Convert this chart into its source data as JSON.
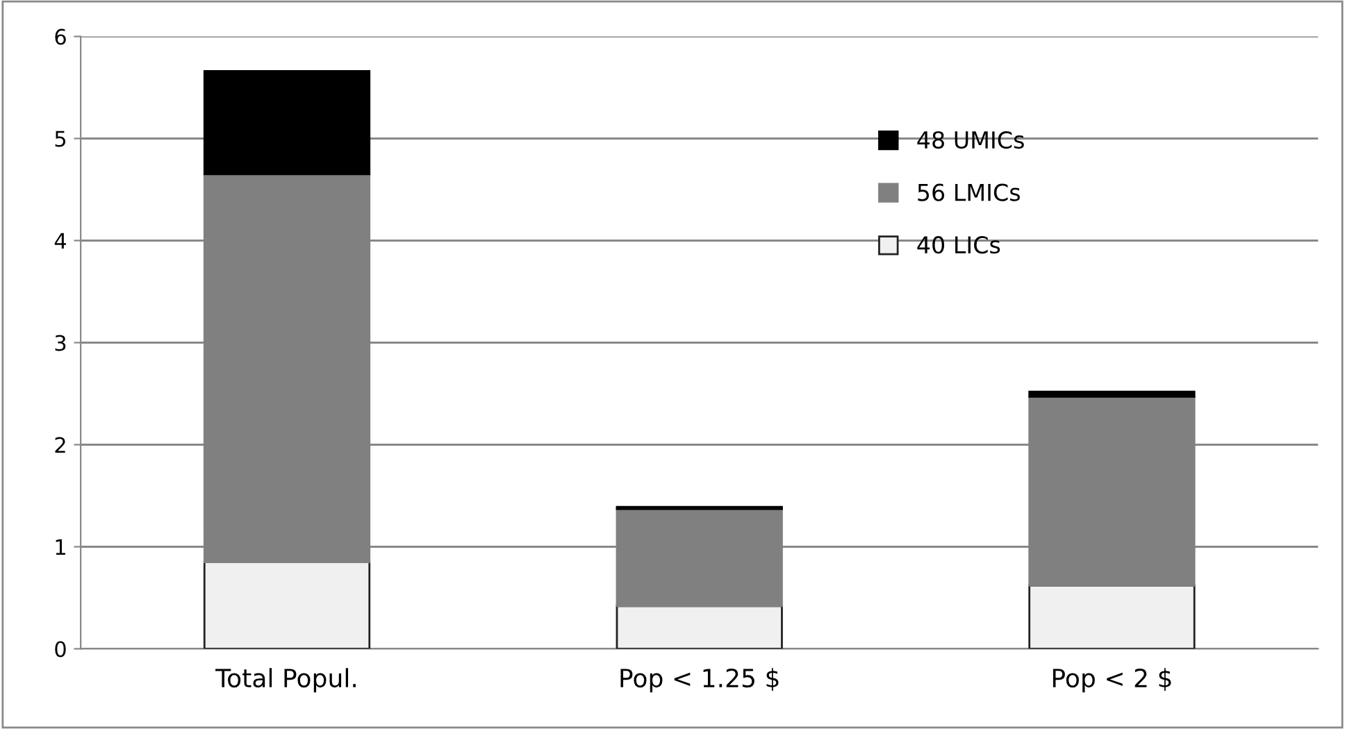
{
  "chart_data": {
    "type": "bar",
    "stacked": true,
    "categories": [
      "Total Popul.",
      "Pop < 1.25 $",
      "Pop < 2 $"
    ],
    "series": [
      {
        "name": "40 LICs",
        "color": "#f0f0f0",
        "values": [
          0.85,
          0.42,
          0.62
        ]
      },
      {
        "name": "56 LMICs",
        "color": "#808080",
        "values": [
          3.8,
          0.95,
          1.85
        ]
      },
      {
        "name": "48 UMICs",
        "color": "#000000",
        "values": [
          1.01,
          0.02,
          0.05
        ]
      }
    ],
    "ylim": [
      0,
      6
    ],
    "yticks": [
      0,
      1,
      2,
      3,
      4,
      5,
      6
    ],
    "grid": "y",
    "legend": "top right"
  }
}
